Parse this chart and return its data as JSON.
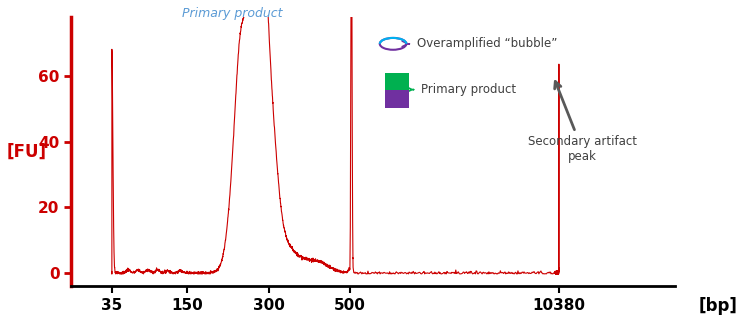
{
  "ylabel": "[FU]",
  "xlabel": "[bp]",
  "yticks": [
    0,
    20,
    40,
    60
  ],
  "xtick_labels": [
    "35",
    "150",
    "300",
    "500",
    "10380"
  ],
  "line_color": "#cc0000",
  "axis_color": "#cc0000",
  "label_primary_product": "Primary product",
  "label_bubble": "Overamplified “bubble”",
  "label_primary_product2": "Primary product",
  "label_artifact": "Secondary artifact\npeak",
  "background_color": "#ffffff",
  "ylim": [
    -4,
    78
  ],
  "text_color_primary": "#5b9bd5",
  "text_color_legend": "#404040",
  "bubble_color1": "#7030a0",
  "bubble_color2": "#00b0f0",
  "bar_color1": "#7030a0",
  "bar_color2": "#00b050",
  "arrow_color": "#595959"
}
